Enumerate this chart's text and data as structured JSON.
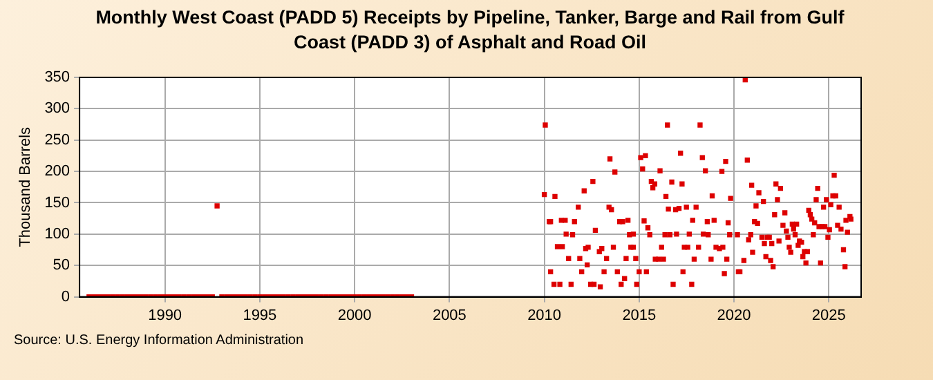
{
  "chart_data": {
    "type": "scatter",
    "title": "Monthly West Coast (PADD 5) Receipts by Pipeline, Tanker, Barge and Rail from Gulf Coast (PADD 3) of Asphalt and Road Oil",
    "ylabel": "Thousand Barrels",
    "annotations": [
      "Source: U.S. Energy Information Administration"
    ],
    "xlim": [
      1985.5,
      2026.7
    ],
    "xticks": [
      1990,
      1995,
      2000,
      2005,
      2010,
      2015,
      2020,
      2025
    ],
    "ylim": [
      0,
      350
    ],
    "yticks": [
      0,
      50,
      100,
      150,
      200,
      250,
      300,
      350
    ],
    "grid": true,
    "legend": false,
    "marker": "square",
    "series": [
      {
        "color": "#dd0000",
        "x": [
          1986,
          1986.25,
          1986.5,
          1986.75,
          1987,
          1987.25,
          1987.5,
          1987.75,
          1988,
          1988.25,
          1988.5,
          1988.75,
          1989,
          1989.25,
          1989.5,
          1989.75,
          1990,
          1990.25,
          1990.5,
          1990.75,
          1991,
          1991.25,
          1991.5,
          1991.75,
          1992,
          1992.25,
          1992.5,
          1992.75,
          1993,
          1993.25,
          1993.5,
          1993.75,
          1994,
          1994.25,
          1994.5,
          1994.75,
          1995,
          1995.25,
          1995.5,
          1995.75,
          1996,
          1996.25,
          1996.5,
          1996.75,
          1997,
          1997.25,
          1997.5,
          1997.75,
          1998,
          1998.25,
          1998.5,
          1998.75,
          1999,
          1999.25,
          1999.5,
          1999.75,
          2000,
          2000.25,
          2000.5,
          2000.75,
          2001,
          2001.25,
          2001.5,
          2001.75,
          2002,
          2002.25,
          2002.5,
          2002.75,
          2003,
          2010.0,
          2010.26,
          2010.05,
          2010.33,
          2010.33,
          2010.51,
          2010.56,
          2010.82,
          2010.69,
          2010.9,
          2010.95,
          2011.1,
          2011.15,
          2011.28,
          2011.41,
          2011.49,
          2011.59,
          2011.79,
          2011.87,
          2011.97,
          2012.1,
          2012.18,
          2012.26,
          2012.31,
          2012.44,
          2012.56,
          2012.62,
          2012.69,
          2012.9,
          2012.95,
          2013.03,
          2013.15,
          2013.28,
          2013.41,
          2013.46,
          2013.54,
          2013.64,
          2013.72,
          2013.85,
          2013.97,
          2014.05,
          2014.13,
          2014.23,
          2014.31,
          2014.41,
          2014.49,
          2014.56,
          2014.69,
          2014.69,
          2014.82,
          2014.87,
          2015.0,
          2015.08,
          2015.18,
          2015.26,
          2015.33,
          2015.38,
          2015.46,
          2015.56,
          2015.64,
          2015.72,
          2015.82,
          2015.85,
          2016.03,
          2016.1,
          2016.18,
          2016.28,
          2016.36,
          2016.41,
          2016.49,
          2016.54,
          2016.62,
          2016.72,
          2016.79,
          2016.92,
          2016.97,
          2017.1,
          2017.18,
          2017.26,
          2017.31,
          2017.38,
          2017.49,
          2017.56,
          2017.64,
          2017.77,
          2017.82,
          2017.9,
          2018.0,
          2018.13,
          2018.21,
          2018.33,
          2018.38,
          2018.49,
          2018.59,
          2018.64,
          2018.79,
          2018.85,
          2018.95,
          2019.05,
          2019.23,
          2019.36,
          2019.41,
          2019.49,
          2019.56,
          2019.62,
          2019.69,
          2019.77,
          2019.82,
          2020.18,
          2020.23,
          2020.31,
          2020.52,
          2020.59,
          2020.7,
          2020.77,
          2020.88,
          2020.93,
          2020.98,
          2021.08,
          2021.16,
          2021.24,
          2021.31,
          2021.47,
          2021.55,
          2021.6,
          2021.68,
          2021.75,
          2021.86,
          2021.93,
          2021.99,
          2022.06,
          2022.14,
          2022.21,
          2022.29,
          2022.37,
          2022.45,
          2022.58,
          2022.68,
          2022.76,
          2022.84,
          2022.91,
          2022.99,
          2023.07,
          2023.14,
          2023.22,
          2023.3,
          2023.38,
          2023.45,
          2023.56,
          2023.63,
          2023.71,
          2023.79,
          2023.87,
          2023.94,
          2024.02,
          2024.1,
          2024.18,
          2024.25,
          2024.33,
          2024.41,
          2024.48,
          2024.56,
          2024.64,
          2024.72,
          2024.79,
          2024.87,
          2024.95,
          2025.03,
          2025.1,
          2025.21,
          2025.28,
          2025.36,
          2025.46,
          2025.54,
          2025.64,
          2025.77,
          2025.85,
          2025.9,
          2025.98,
          2026.11,
          2026.16
        ],
        "values": [
          0,
          0,
          0,
          0,
          0,
          0,
          0,
          0,
          0,
          0,
          0,
          0,
          0,
          0,
          0,
          0,
          0,
          0,
          0,
          0,
          0,
          0,
          0,
          0,
          0,
          0,
          0,
          145,
          0,
          0,
          0,
          0,
          0,
          0,
          0,
          0,
          0,
          0,
          0,
          0,
          0,
          0,
          0,
          0,
          0,
          0,
          0,
          0,
          0,
          0,
          0,
          0,
          0,
          0,
          0,
          0,
          0,
          0,
          0,
          0,
          0,
          0,
          0,
          0,
          0,
          0,
          0,
          0,
          0,
          163,
          120,
          274,
          120,
          40,
          20,
          160,
          20,
          80,
          122,
          80,
          122,
          100,
          61,
          20,
          99,
          120,
          143,
          61,
          40,
          169,
          77,
          51,
          79,
          20,
          184,
          20,
          106,
          72,
          16,
          77,
          40,
          61,
          143,
          220,
          139,
          79,
          199,
          40,
          120,
          20,
          120,
          29,
          61,
          122,
          99,
          79,
          100,
          79,
          61,
          20,
          40,
          222,
          204,
          121,
          225,
          40,
          110,
          99,
          184,
          174,
          180,
          60,
          60,
          201,
          79,
          60,
          99,
          160,
          274,
          140,
          99,
          183,
          20,
          139,
          100,
          141,
          229,
          180,
          40,
          79,
          143,
          79,
          100,
          20,
          122,
          60,
          143,
          79,
          274,
          222,
          100,
          201,
          120,
          99,
          60,
          161,
          122,
          79,
          77,
          200,
          79,
          37,
          216,
          60,
          118,
          99,
          157,
          99,
          40,
          40,
          58,
          346,
          218,
          91,
          99,
          178,
          71,
          120,
          145,
          117,
          166,
          95,
          152,
          85,
          64,
          95,
          95,
          58,
          85,
          48,
          131,
          180,
          155,
          89,
          173,
          114,
          134,
          105,
          95,
          79,
          71,
          116,
          108,
          99,
          116,
          82,
          89,
          87,
          64,
          72,
          54,
          72,
          138,
          131,
          124,
          99,
          118,
          155,
          173,
          112,
          54,
          112,
          143,
          112,
          155,
          95,
          107,
          147,
          161,
          194,
          161,
          114,
          143,
          108,
          75,
          48,
          122,
          103,
          128,
          124
        ]
      }
    ]
  }
}
